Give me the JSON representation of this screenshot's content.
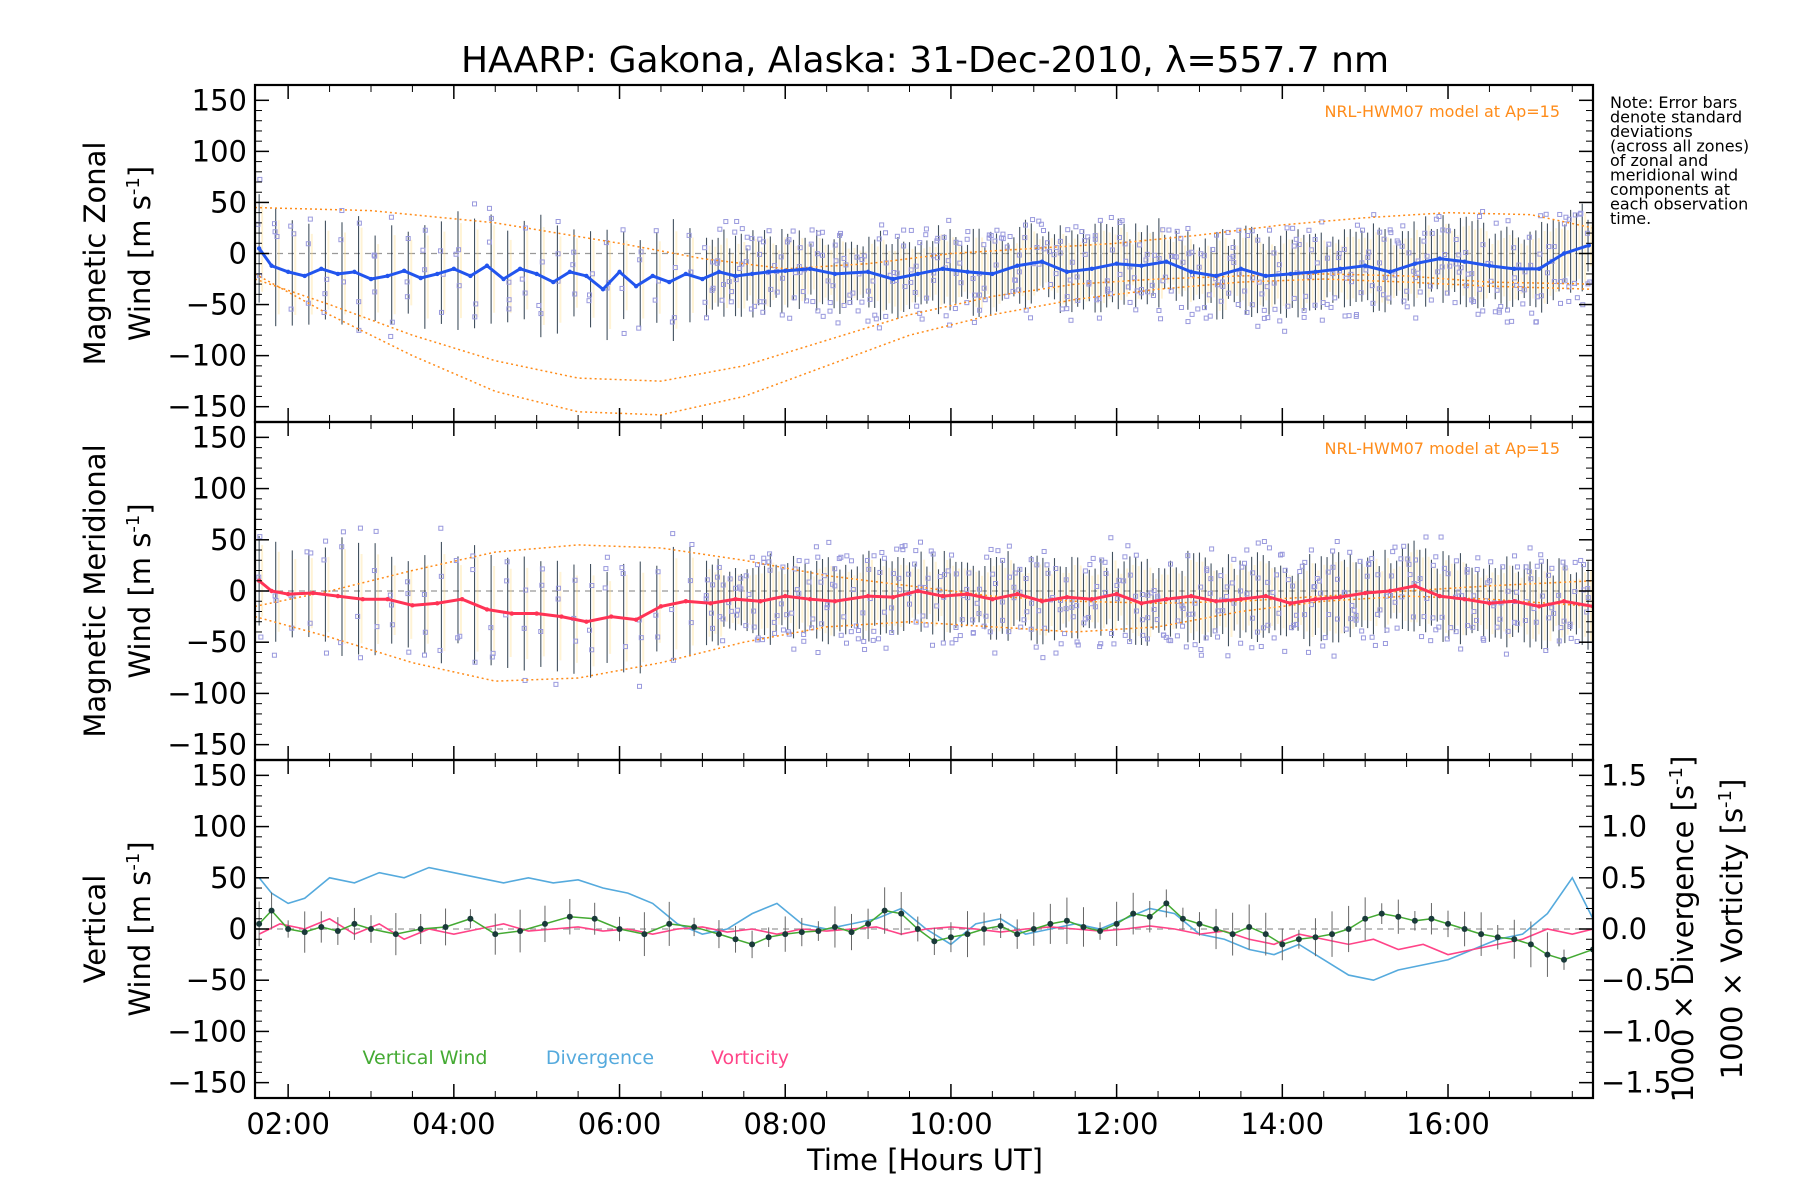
{
  "chart_data": {
    "title": "HAARP: Gakona,  Alaska: 31-Dec-2010, λ=557.7 nm",
    "xlabel": "Time [Hours UT]",
    "x_range_hours": [
      1.6,
      17.75
    ],
    "x_ticks": [
      "02:00",
      "04:00",
      "06:00",
      "08:00",
      "10:00",
      "12:00",
      "14:00",
      "16:00"
    ],
    "x_tick_hours": [
      2,
      4,
      6,
      8,
      10,
      12,
      14,
      16
    ],
    "note": [
      "Note: Error bars",
      "denote standard",
      "deviations",
      "(across all zones)",
      "of zonal and",
      "meridional wind",
      "components at",
      "each observation",
      "time."
    ],
    "colors": {
      "zonal": "#2255ee",
      "meridional": "#ff3355",
      "vertical": "#44aa33",
      "divergence": "#55aadd",
      "vorticity": "#ff4488",
      "model": "#ff8c1a",
      "scatter": "#9999dd",
      "errorbar": "#223344"
    },
    "panels": [
      {
        "type": "line",
        "ylabel_line1": "Magnetic Zonal",
        "ylabel_line2": "Wind [m s",
        "ylabel_sup": "-1",
        "ylabel_end": "]",
        "ylim": [
          -165,
          165
        ],
        "yticks": [
          "150",
          "100",
          "50",
          "0",
          "−50",
          "−100",
          "−150"
        ],
        "ytick_values": [
          150,
          100,
          50,
          0,
          -50,
          -100,
          -150
        ],
        "model_label": "NRL-HWM07 model at Ap=15",
        "series": [
          {
            "x": [
              1.65,
              1.8,
              2.0,
              2.2,
              2.4,
              2.6,
              2.8,
              3.0,
              3.2,
              3.4,
              3.6,
              3.8,
              4.0,
              4.2,
              4.4,
              4.6,
              4.8,
              5.0,
              5.2,
              5.4,
              5.6,
              5.8,
              6.0,
              6.2,
              6.4,
              6.6,
              6.8,
              7.0,
              7.2,
              7.4,
              7.6,
              7.8,
              8.0,
              8.3,
              8.6,
              9.0,
              9.3,
              9.6,
              9.9,
              10.2,
              10.5,
              10.8,
              11.1,
              11.4,
              11.7,
              12.0,
              12.3,
              12.6,
              12.9,
              13.2,
              13.5,
              13.8,
              14.1,
              14.4,
              14.7,
              15.0,
              15.3,
              15.6,
              15.9,
              16.2,
              16.5,
              16.8,
              17.1,
              17.4,
              17.7
            ],
            "y": [
              5,
              -12,
              -18,
              -22,
              -15,
              -20,
              -18,
              -25,
              -22,
              -17,
              -24,
              -20,
              -15,
              -22,
              -12,
              -25,
              -15,
              -20,
              -28,
              -18,
              -22,
              -35,
              -18,
              -32,
              -22,
              -28,
              -20,
              -25,
              -18,
              -22,
              -20,
              -18,
              -17,
              -15,
              -20,
              -18,
              -25,
              -20,
              -15,
              -18,
              -20,
              -12,
              -8,
              -18,
              -15,
              -10,
              -12,
              -8,
              -18,
              -22,
              -15,
              -22,
              -20,
              -18,
              -15,
              -12,
              -18,
              -10,
              -5,
              -8,
              -12,
              -15,
              -15,
              0,
              8
            ]
          }
        ],
        "model_curves": [
          {
            "x": [
              1.6,
              3,
              4.5,
              6,
              7,
              8,
              9,
              10,
              11,
              12,
              13,
              14,
              15,
              16,
              17,
              17.75
            ],
            "y": [
              45,
              42,
              30,
              10,
              -5,
              -15,
              -10,
              0,
              5,
              10,
              18,
              28,
              35,
              40,
              38,
              25
            ]
          },
          {
            "x": [
              1.6,
              2.5,
              3.5,
              4.5,
              5.5,
              6.5,
              7.5,
              8.5,
              9.5,
              10.5,
              11.5,
              12.5,
              13.5,
              14.5,
              15.5,
              16.5,
              17.75
            ],
            "y": [
              -20,
              -60,
              -100,
              -135,
              -155,
              -158,
              -140,
              -110,
              -80,
              -60,
              -45,
              -35,
              -28,
              -25,
              -28,
              -32,
              -35
            ]
          },
          {
            "x": [
              1.6,
              2.5,
              3.5,
              4.5,
              5.5,
              6.5,
              7.5,
              8.5,
              9.5,
              10.5,
              11.5,
              12.5,
              13.5,
              14.5,
              15.5,
              16.5,
              17.75
            ],
            "y": [
              -25,
              -50,
              -80,
              -105,
              -122,
              -125,
              -110,
              -85,
              -60,
              -42,
              -30,
              -25,
              -22,
              -20,
              -22,
              -28,
              -30
            ]
          }
        ]
      },
      {
        "type": "line",
        "ylabel_line1": "Magnetic Meridional",
        "ylabel_line2": "Wind [m s",
        "ylabel_sup": "-1",
        "ylabel_end": "]",
        "ylim": [
          -165,
          165
        ],
        "yticks": [
          "150",
          "100",
          "50",
          "0",
          "−50",
          "−100",
          "−150"
        ],
        "ytick_values": [
          150,
          100,
          50,
          0,
          -50,
          -100,
          -150
        ],
        "model_label": "NRL-HWM07 model at Ap=15",
        "series": [
          {
            "x": [
              1.65,
              1.8,
              2.0,
              2.3,
              2.6,
              2.9,
              3.2,
              3.5,
              3.8,
              4.1,
              4.4,
              4.7,
              5.0,
              5.3,
              5.6,
              5.9,
              6.2,
              6.5,
              6.8,
              7.1,
              7.4,
              7.7,
              8.0,
              8.3,
              8.6,
              9.0,
              9.3,
              9.6,
              9.9,
              10.2,
              10.5,
              10.8,
              11.1,
              11.4,
              11.7,
              12.0,
              12.3,
              12.6,
              12.9,
              13.2,
              13.5,
              13.8,
              14.1,
              14.4,
              14.7,
              15.0,
              15.3,
              15.6,
              15.9,
              16.2,
              16.5,
              16.8,
              17.1,
              17.4,
              17.75
            ],
            "y": [
              10,
              0,
              -3,
              -2,
              -5,
              -8,
              -8,
              -14,
              -12,
              -8,
              -18,
              -22,
              -22,
              -25,
              -30,
              -25,
              -28,
              -15,
              -10,
              -12,
              -8,
              -10,
              -5,
              -8,
              -10,
              -5,
              -6,
              0,
              -5,
              -3,
              -8,
              -3,
              -10,
              -6,
              -8,
              -3,
              -12,
              -8,
              -5,
              -10,
              -8,
              -5,
              -12,
              -8,
              -6,
              -2,
              0,
              5,
              -5,
              -8,
              -12,
              -10,
              -15,
              -10,
              -15
            ]
          }
        ],
        "model_curves": [
          {
            "x": [
              1.6,
              2.5,
              3.5,
              4.5,
              5.5,
              6.5,
              7.5,
              8.5,
              9.5,
              10.5,
              11.5,
              12.5,
              13.5,
              14.5,
              15.5,
              16.5,
              17.75
            ],
            "y": [
              -15,
              0,
              20,
              38,
              45,
              42,
              30,
              15,
              5,
              -5,
              -10,
              -12,
              -10,
              -5,
              0,
              5,
              10
            ]
          },
          {
            "x": [
              1.6,
              2.5,
              3.5,
              4.5,
              5.5,
              6.5,
              7.5,
              8.5,
              9.5,
              10.5,
              11.5,
              12.5,
              13.5,
              14.5,
              15.5,
              16.5,
              17.75
            ],
            "y": [
              -25,
              -45,
              -70,
              -88,
              -85,
              -70,
              -50,
              -35,
              -30,
              -35,
              -40,
              -35,
              -20,
              -10,
              -5,
              -8,
              -15
            ]
          }
        ]
      },
      {
        "type": "line",
        "ylabel_line1": "Vertical",
        "ylabel_line2": "Wind [m s",
        "ylabel_sup": "-1",
        "ylabel_end": "]",
        "ylim": [
          -165,
          165
        ],
        "yticks": [
          "150",
          "100",
          "50",
          "0",
          "−50",
          "−100",
          "−150"
        ],
        "ytick_values": [
          150,
          100,
          50,
          0,
          -50,
          -100,
          -150
        ],
        "right_ylim": [
          -1.65,
          1.65
        ],
        "right_yticks": [
          "1.5",
          "1.0",
          "0.5",
          "0.0",
          "−0.5",
          "−1.0",
          "−1.5"
        ],
        "right_ytick_values": [
          1.5,
          1.0,
          0.5,
          0.0,
          -0.5,
          -1.0,
          -1.5
        ],
        "right_ylabel_div": "1000 × Divergence [s",
        "right_ylabel_vor": "1000 × Vorticity [s",
        "right_ylabel_sup": "-1",
        "right_ylabel_end": "]",
        "legend": [
          "Vertical Wind",
          "Divergence",
          "Vorticity"
        ],
        "series": [
          {
            "name": "Vertical Wind",
            "x": [
              1.65,
              1.8,
              2.0,
              2.2,
              2.4,
              2.6,
              2.8,
              3.0,
              3.3,
              3.6,
              3.9,
              4.2,
              4.5,
              4.8,
              5.1,
              5.4,
              5.7,
              6.0,
              6.3,
              6.6,
              6.9,
              7.2,
              7.4,
              7.6,
              7.8,
              8.0,
              8.2,
              8.4,
              8.6,
              8.8,
              9.0,
              9.2,
              9.4,
              9.6,
              9.8,
              10.0,
              10.2,
              10.4,
              10.6,
              10.8,
              11.0,
              11.2,
              11.4,
              11.6,
              11.8,
              12.0,
              12.2,
              12.4,
              12.6,
              12.8,
              13.0,
              13.2,
              13.4,
              13.6,
              13.8,
              14.0,
              14.2,
              14.4,
              14.6,
              14.8,
              15.0,
              15.2,
              15.4,
              15.6,
              15.8,
              16.0,
              16.2,
              16.4,
              16.6,
              16.8,
              17.0,
              17.2,
              17.4,
              17.75
            ],
            "y": [
              5,
              18,
              0,
              -3,
              2,
              -2,
              5,
              0,
              -5,
              0,
              2,
              10,
              -5,
              -2,
              5,
              12,
              10,
              0,
              -5,
              5,
              2,
              -5,
              -10,
              -15,
              -8,
              -5,
              -3,
              -2,
              2,
              -3,
              5,
              18,
              15,
              0,
              -12,
              -8,
              -5,
              0,
              3,
              -5,
              0,
              5,
              8,
              2,
              -2,
              5,
              15,
              12,
              25,
              10,
              5,
              0,
              -5,
              2,
              -5,
              -15,
              -10,
              -8,
              -5,
              0,
              10,
              15,
              12,
              8,
              10,
              5,
              0,
              -5,
              -8,
              -10,
              -15,
              -25,
              -30,
              -20
            ]
          },
          {
            "name": "Divergence",
            "x": [
              1.65,
              1.8,
              2.0,
              2.2,
              2.5,
              2.8,
              3.1,
              3.4,
              3.7,
              4.0,
              4.3,
              4.6,
              4.9,
              5.2,
              5.5,
              5.8,
              6.1,
              6.4,
              6.7,
              7.0,
              7.3,
              7.6,
              7.9,
              8.2,
              8.5,
              8.8,
              9.1,
              9.4,
              9.7,
              10.0,
              10.3,
              10.6,
              10.9,
              11.2,
              11.5,
              11.8,
              12.1,
              12.4,
              12.7,
              13.0,
              13.3,
              13.6,
              13.9,
              14.2,
              14.5,
              14.8,
              15.1,
              15.4,
              15.7,
              16.0,
              16.3,
              16.6,
              16.9,
              17.2,
              17.5,
              17.75
            ],
            "y": [
              0.5,
              0.35,
              0.25,
              0.3,
              0.5,
              0.45,
              0.55,
              0.5,
              0.6,
              0.55,
              0.5,
              0.45,
              0.5,
              0.45,
              0.48,
              0.4,
              0.35,
              0.25,
              0.05,
              -0.05,
              0.0,
              0.15,
              0.25,
              0.05,
              0.0,
              0.05,
              0.1,
              0.2,
              0.0,
              -0.15,
              0.05,
              0.1,
              -0.05,
              0.0,
              0.05,
              0.0,
              0.1,
              0.2,
              0.15,
              -0.05,
              -0.1,
              -0.2,
              -0.25,
              -0.15,
              -0.3,
              -0.45,
              -0.5,
              -0.4,
              -0.35,
              -0.3,
              -0.2,
              -0.1,
              -0.05,
              0.15,
              0.5,
              0.1
            ]
          },
          {
            "name": "Vorticity",
            "x": [
              1.65,
              1.9,
              2.2,
              2.5,
              2.8,
              3.1,
              3.4,
              3.7,
              4.0,
              4.3,
              4.6,
              4.9,
              5.2,
              5.5,
              5.8,
              6.1,
              6.4,
              6.7,
              7.0,
              7.3,
              7.6,
              7.9,
              8.2,
              8.5,
              8.8,
              9.1,
              9.4,
              9.7,
              10.0,
              10.3,
              10.6,
              10.9,
              11.2,
              11.5,
              11.8,
              12.1,
              12.4,
              12.7,
              13.0,
              13.3,
              13.6,
              13.9,
              14.2,
              14.5,
              14.8,
              15.1,
              15.4,
              15.7,
              16.0,
              16.3,
              16.6,
              16.9,
              17.2,
              17.5,
              17.75
            ],
            "y": [
              -0.05,
              0.05,
              0.0,
              0.1,
              -0.05,
              0.05,
              -0.1,
              0.0,
              -0.05,
              0.0,
              0.05,
              -0.02,
              0.0,
              0.02,
              -0.02,
              0.0,
              -0.05,
              0.0,
              0.02,
              -0.03,
              0.0,
              -0.05,
              0.0,
              -0.02,
              0.0,
              0.02,
              -0.05,
              0.0,
              0.02,
              0.0,
              -0.03,
              0.0,
              0.02,
              0.0,
              -0.02,
              0.0,
              0.03,
              0.0,
              -0.05,
              -0.02,
              -0.1,
              -0.15,
              -0.05,
              -0.1,
              -0.15,
              -0.1,
              -0.2,
              -0.15,
              -0.25,
              -0.2,
              -0.15,
              -0.1,
              0.0,
              -0.05,
              0.0
            ]
          }
        ]
      }
    ]
  }
}
